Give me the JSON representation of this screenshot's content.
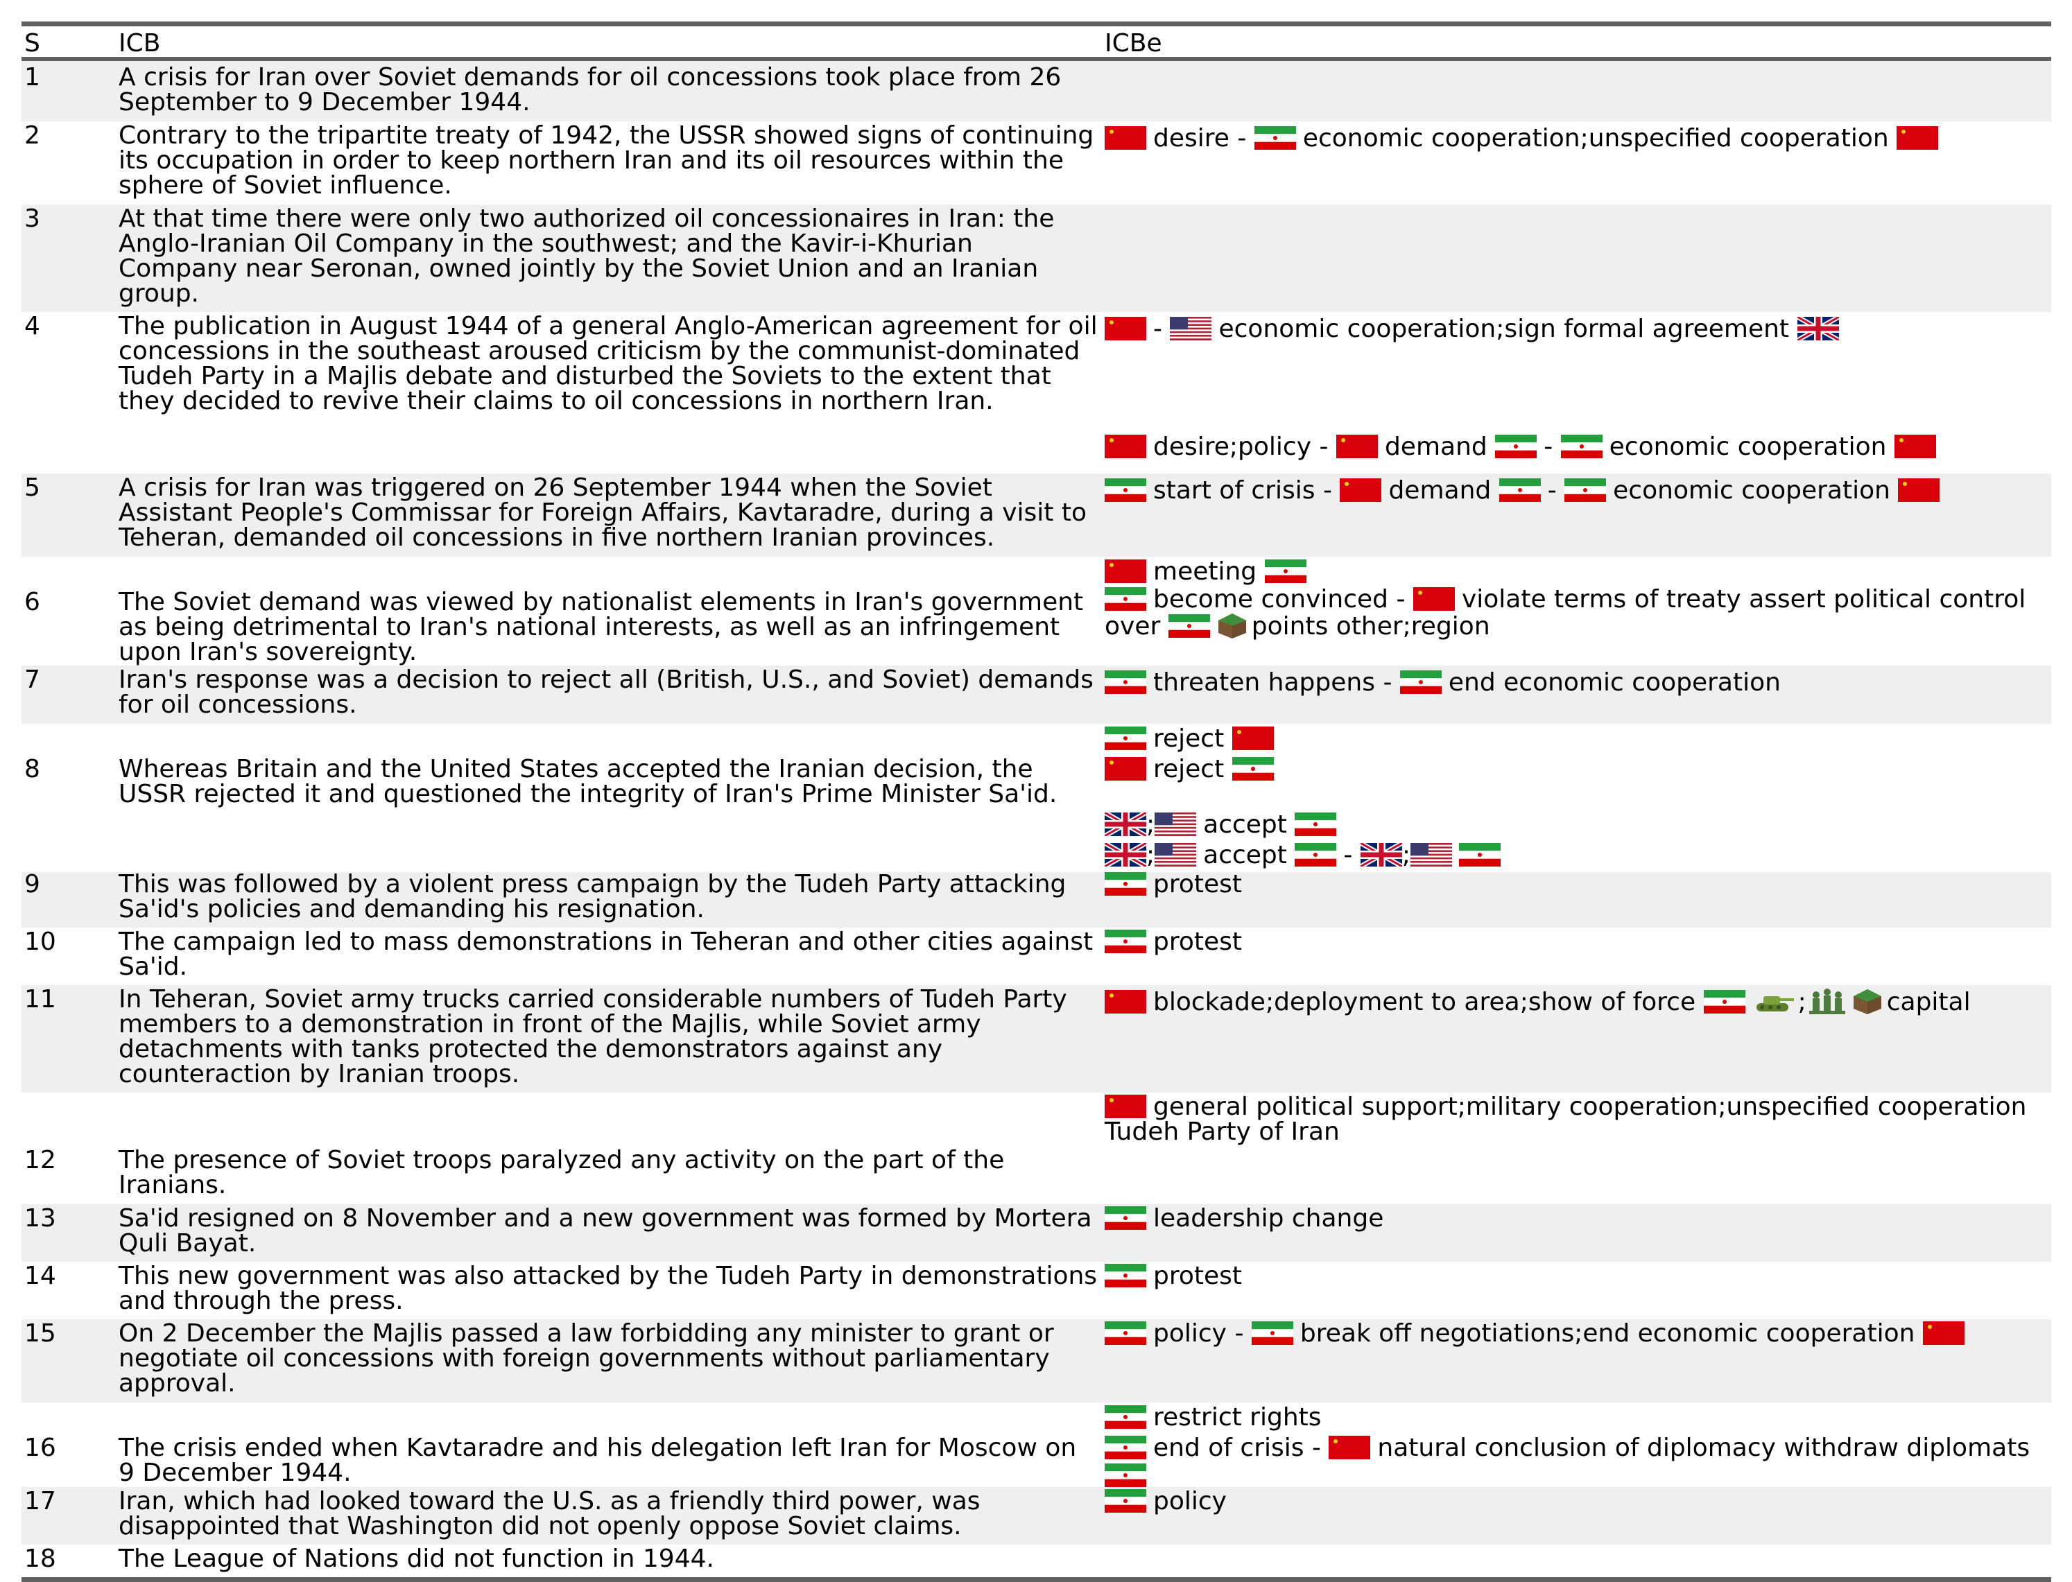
{
  "header": {
    "s": "S",
    "icb": "ICB",
    "icbe": "ICBe"
  },
  "rows": [
    {
      "s": "1",
      "icb": "A crisis for Iran over Soviet demands for oil concessions took place from 26 September to 9 December 1944.",
      "events": []
    },
    {
      "s": "2",
      "icb": "Contrary to the tripartite treaty of 1942, the USSR showed signs of continuing its occupation in order to keep northern Iran and its oil resources within the sphere of Soviet influence.",
      "events": [
        "desire",
        "economic cooperation;unspecified cooperation"
      ]
    },
    {
      "s": "3",
      "icb": "At that time there were only two authorized oil concessionaires in Iran: the Anglo-Iranian Oil Company in the southwest; and the Kavir-i-Khurian Company near Seronan, owned jointly by the Soviet Union and an Iranian group.",
      "events": []
    },
    {
      "s": "4",
      "icb": "The publication in August 1944 of a general Anglo-American agreement for oil concessions in the southeast aroused criticism by the communist-dominated Tudeh Party in a Majlis debate and disturbed the Soviets to the extent that they decided to revive their claims to oil concessions in northern Iran.",
      "events": [
        "economic cooperation;sign formal agreement",
        "desire;policy",
        "demand",
        "economic cooperation"
      ]
    },
    {
      "s": "5",
      "icb": "A crisis for Iran was triggered on 26 September 1944 when the Soviet Assistant People's Commissar for Foreign Affairs, Kavtaradre, during a visit to Teheran, demanded oil concessions in five northern Iranian provinces.",
      "events": [
        "start of crisis",
        "demand",
        "economic cooperation"
      ]
    },
    {
      "s": "6",
      "icb": "The Soviet demand was viewed by nationalist elements in Iran's government as being detrimental to Iran's national interests, as well as an infringement upon Iran's sovereignty.",
      "events": [
        "meeting",
        "become convinced",
        "violate terms of treaty assert political control over",
        "points other;region"
      ]
    },
    {
      "s": "7",
      "icb": "Iran's response was a decision to reject all (British, U.S., and Soviet) demands for oil concessions.",
      "events": [
        "threaten happens",
        "end economic cooperation"
      ]
    },
    {
      "s": "8",
      "icb": "Whereas Britain and the United States accepted the Iranian decision, the USSR rejected it and questioned the integrity of Iran's Prime Minister Sa'id.",
      "events": [
        "reject",
        "reject",
        "accept",
        "accept"
      ]
    },
    {
      "s": "9",
      "icb": "This was followed by a violent press campaign by the Tudeh Party attacking Sa'id's policies and demanding his resignation.",
      "events": [
        "protest"
      ]
    },
    {
      "s": "10",
      "icb": "The campaign led to mass demonstrations in Teheran and other cities against Sa'id.",
      "events": [
        "protest"
      ]
    },
    {
      "s": "11",
      "icb": "In Teheran, Soviet army trucks carried considerable numbers of Tudeh Party members to a demonstration in front of the Majlis, while Soviet army detachments with tanks protected the demonstrators against any counteraction by Iranian troops.",
      "events": [
        "blockade;deployment to area;show of force",
        "capital"
      ]
    },
    {
      "s": "12",
      "icb": "The presence of Soviet troops paralyzed any activity on the part of the Iranians.",
      "events": [
        "general political support;military cooperation;unspecified cooperation Tudeh Party of Iran"
      ]
    },
    {
      "s": "13",
      "icb": "Sa'id resigned on 8 November and a new government was formed by Mortera Quli Bayat.",
      "events": [
        "leadership change"
      ]
    },
    {
      "s": "14",
      "icb": "This new government was also attacked by the Tudeh Party in demonstrations and through the press.",
      "events": [
        "protest"
      ]
    },
    {
      "s": "15",
      "icb": "On 2 December the Majlis passed a law forbidding any minister to grant or negotiate oil concessions with foreign governments without parliamentary approval.",
      "events": [
        "policy",
        "break off negotiations;end economic cooperation"
      ]
    },
    {
      "s": "16",
      "icb": "The crisis ended when Kavtaradre and his delegation left Iran for Moscow on 9 December 1944.",
      "events": [
        "restrict rights",
        "end of crisis",
        "natural conclusion of diplomacy withdraw diplomats"
      ]
    },
    {
      "s": "17",
      "icb": "Iran, which had looked toward the U.S. as a friendly third power, was disappointed that Washington did not openly oppose Soviet claims.",
      "events": [
        "policy"
      ]
    },
    {
      "s": "18",
      "icb": "The League of Nations did not function in 1944.",
      "events": []
    }
  ],
  "separators": {
    "dash": "-",
    "semicolon": ";"
  },
  "flags": {
    "ussr": "flag-ussr-icon",
    "iran": "flag-iran-icon",
    "usa": "flag-usa-icon",
    "uk": "flag-uk-icon"
  },
  "colors": {
    "shade": "#efefef",
    "rule": "#606060"
  }
}
